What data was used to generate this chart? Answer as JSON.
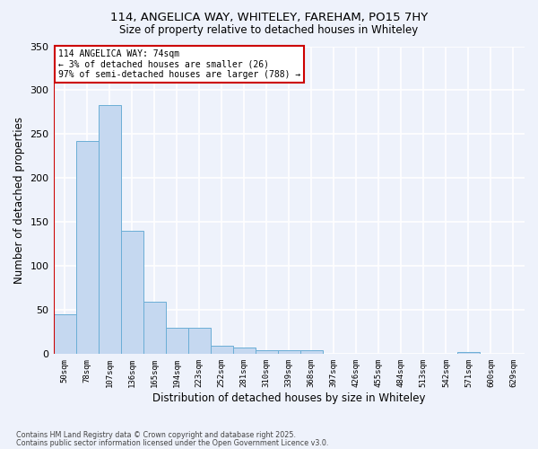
{
  "title1": "114, ANGELICA WAY, WHITELEY, FAREHAM, PO15 7HY",
  "title2": "Size of property relative to detached houses in Whiteley",
  "xlabel": "Distribution of detached houses by size in Whiteley",
  "ylabel": "Number of detached properties",
  "categories": [
    "50sqm",
    "78sqm",
    "107sqm",
    "136sqm",
    "165sqm",
    "194sqm",
    "223sqm",
    "252sqm",
    "281sqm",
    "310sqm",
    "339sqm",
    "368sqm",
    "397sqm",
    "426sqm",
    "455sqm",
    "484sqm",
    "513sqm",
    "542sqm",
    "571sqm",
    "600sqm",
    "629sqm"
  ],
  "values": [
    45,
    242,
    283,
    140,
    60,
    30,
    30,
    10,
    7,
    4,
    4,
    4,
    0,
    0,
    0,
    0,
    0,
    0,
    2,
    0,
    0
  ],
  "bar_color": "#c5d8f0",
  "bar_edge_color": "#6baed6",
  "bg_color": "#eef2fb",
  "grid_color": "#ffffff",
  "vline_color": "#cc0000",
  "vline_x_index": 0,
  "annotation_text": "114 ANGELICA WAY: 74sqm\n← 3% of detached houses are smaller (26)\n97% of semi-detached houses are larger (788) →",
  "annotation_box_color": "#ffffff",
  "annotation_box_edge": "#cc0000",
  "footnote1": "Contains HM Land Registry data © Crown copyright and database right 2025.",
  "footnote2": "Contains public sector information licensed under the Open Government Licence v3.0.",
  "ylim": [
    0,
    350
  ],
  "yticks": [
    0,
    50,
    100,
    150,
    200,
    250,
    300,
    350
  ]
}
